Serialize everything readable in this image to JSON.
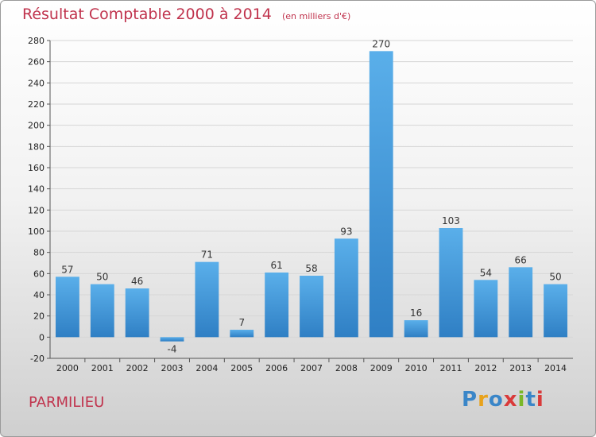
{
  "chart_data": {
    "type": "bar",
    "title": "Résultat Comptable 2000 à 2014",
    "subtitle": "(en milliers d'€)",
    "categories": [
      "2000",
      "2001",
      "2002",
      "2003",
      "2004",
      "2005",
      "2006",
      "2007",
      "2008",
      "2009",
      "2010",
      "2011",
      "2012",
      "2013",
      "2014"
    ],
    "values": [
      57,
      50,
      46,
      -4,
      71,
      7,
      61,
      58,
      93,
      270,
      16,
      103,
      54,
      66,
      50
    ],
    "ylim": [
      -20,
      280
    ],
    "yticks": [
      -20,
      0,
      20,
      40,
      60,
      80,
      100,
      120,
      140,
      160,
      180,
      200,
      220,
      240,
      260,
      280
    ],
    "grid": true,
    "bar_color": "#4a9fe0"
  },
  "place_name": "PARMILIEU",
  "logo": {
    "letters": [
      "P",
      "r",
      "o",
      "x",
      "i",
      "t",
      "i"
    ],
    "colors": [
      "#3a86c8",
      "#e8a21b",
      "#3a86c8",
      "#d93a3a",
      "#7ab829",
      "#3a86c8",
      "#d93a3a"
    ]
  }
}
